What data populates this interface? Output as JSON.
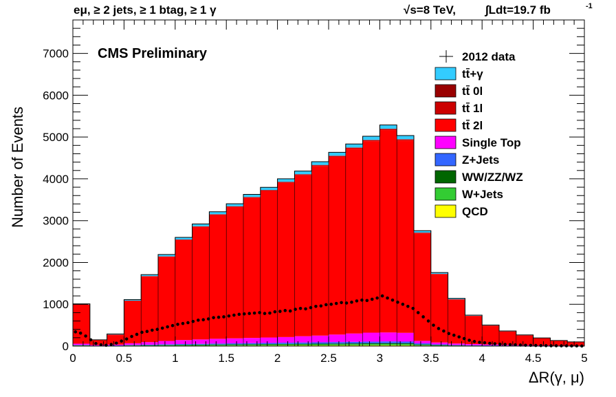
{
  "header": {
    "left": "eμ, ≥ 2 jets, ≥ 1 btag, ≥ 1 γ",
    "sqrt": "√s=8 TeV,",
    "lumi": "∫Ldt=19.7 fb",
    "lumi_exp": "-1"
  },
  "chart_data": {
    "type": "bar",
    "stacked": true,
    "title": "CMS Preliminary",
    "xlabel": "ΔR(γ, μ)",
    "ylabel": "Number of Events",
    "xlim": [
      0,
      5
    ],
    "ylim": [
      0,
      7800
    ],
    "x_ticks": [
      "0",
      "0.5",
      "1",
      "1.5",
      "2",
      "2.5",
      "3",
      "3.5",
      "4",
      "4.5",
      "5"
    ],
    "y_ticks": [
      "0",
      "1000",
      "2000",
      "3000",
      "4000",
      "5000",
      "6000",
      "7000"
    ],
    "legend_position": "top-right",
    "bin_edges": [
      0,
      0.166667,
      0.333333,
      0.5,
      0.666667,
      0.833333,
      1,
      1.166667,
      1.333333,
      1.5,
      1.666667,
      1.833333,
      2,
      2.166667,
      2.333333,
      2.5,
      2.666667,
      2.833333,
      3,
      3.166667,
      3.333333,
      3.5,
      3.666667,
      3.833333,
      4,
      4.166667,
      4.333333,
      4.5,
      4.666667,
      4.833333,
      5
    ],
    "series": [
      {
        "name": "QCD",
        "color": "#ffff00",
        "values": [
          5,
          2,
          3,
          5,
          6,
          8,
          9,
          10,
          11,
          12,
          13,
          14,
          15,
          16,
          17,
          18,
          19,
          20,
          21,
          20,
          12,
          8,
          5,
          4,
          3,
          2,
          2,
          1,
          1,
          1
        ]
      },
      {
        "name": "W+Jets",
        "color": "#33cc33",
        "values": [
          8,
          3,
          4,
          8,
          10,
          12,
          14,
          15,
          17,
          18,
          19,
          20,
          22,
          23,
          24,
          25,
          26,
          27,
          28,
          27,
          16,
          10,
          7,
          5,
          4,
          3,
          2,
          2,
          1,
          1
        ]
      },
      {
        "name": "WW/ZZ/WZ",
        "color": "#006600",
        "values": [
          5,
          2,
          3,
          5,
          6,
          8,
          9,
          10,
          11,
          12,
          13,
          14,
          15,
          16,
          17,
          18,
          19,
          20,
          21,
          20,
          12,
          8,
          5,
          4,
          3,
          2,
          2,
          1,
          1,
          1
        ]
      },
      {
        "name": "Z+Jets",
        "color": "#3366ff",
        "values": [
          10,
          4,
          6,
          10,
          12,
          15,
          17,
          19,
          21,
          23,
          25,
          27,
          29,
          31,
          33,
          35,
          37,
          39,
          41,
          40,
          25,
          15,
          10,
          8,
          6,
          5,
          4,
          3,
          2,
          2
        ]
      },
      {
        "name": "Single Top",
        "color": "#ff00ff",
        "values": [
          30,
          15,
          20,
          40,
          60,
          80,
          95,
          105,
          115,
          120,
          125,
          130,
          135,
          150,
          160,
          180,
          200,
          215,
          215,
          210,
          60,
          45,
          35,
          28,
          22,
          17,
          13,
          10,
          8,
          6
        ]
      },
      {
        "name": "tt̄ 2l",
        "color": "#ff0000",
        "values": [
          930,
          115,
          235,
          1010,
          1570,
          2010,
          2390,
          2690,
          2960,
          3140,
          3350,
          3505,
          3690,
          3850,
          4055,
          4250,
          4420,
          4580,
          4840,
          4600,
          2570,
          1630,
          1050,
          670,
          450,
          320,
          235,
          170,
          115,
          85
        ]
      },
      {
        "name": "tt̄ 1l",
        "color": "#cc0000",
        "values": [
          6,
          3,
          4,
          6,
          8,
          10,
          12,
          13,
          14,
          15,
          16,
          17,
          18,
          19,
          20,
          21,
          22,
          23,
          24,
          23,
          15,
          10,
          7,
          5,
          4,
          3,
          2,
          2,
          1,
          1
        ]
      },
      {
        "name": "tt̄ 0l",
        "color": "#990000",
        "values": [
          2,
          1,
          1,
          2,
          3,
          3,
          4,
          4,
          5,
          5,
          5,
          6,
          6,
          6,
          7,
          7,
          7,
          8,
          8,
          8,
          5,
          3,
          2,
          2,
          1,
          1,
          1,
          1,
          0,
          0
        ]
      },
      {
        "name": "tt̄+γ",
        "color": "#33ccff",
        "values": [
          14,
          5,
          14,
          24,
          35,
          44,
          50,
          54,
          58,
          60,
          62,
          65,
          70,
          74,
          77,
          80,
          84,
          87,
          90,
          88,
          45,
          30,
          20,
          15,
          11,
          8,
          6,
          5,
          4,
          3
        ]
      }
    ],
    "data": {
      "name": "2012 data",
      "x": [
        0.025,
        0.075,
        0.125,
        0.175,
        0.225,
        0.275,
        0.325,
        0.375,
        0.425,
        0.475,
        0.525,
        0.575,
        0.625,
        0.675,
        0.725,
        0.775,
        0.825,
        0.875,
        0.925,
        0.975,
        1.025,
        1.075,
        1.125,
        1.175,
        1.225,
        1.275,
        1.325,
        1.375,
        1.425,
        1.475,
        1.525,
        1.575,
        1.625,
        1.675,
        1.725,
        1.775,
        1.825,
        1.875,
        1.925,
        1.975,
        2.025,
        2.075,
        2.125,
        2.175,
        2.225,
        2.275,
        2.325,
        2.375,
        2.425,
        2.475,
        2.525,
        2.575,
        2.625,
        2.675,
        2.725,
        2.775,
        2.825,
        2.875,
        2.925,
        2.975,
        3.025,
        3.075,
        3.125,
        3.175,
        3.225,
        3.275,
        3.325,
        3.375,
        3.425,
        3.475,
        3.525,
        3.575,
        3.625,
        3.675,
        3.725,
        3.775,
        3.825,
        3.875,
        3.925,
        3.975,
        4.025,
        4.075,
        4.125,
        4.175,
        4.225,
        4.275,
        4.325,
        4.375,
        4.425,
        4.475,
        4.525,
        4.575,
        4.625,
        4.675,
        4.725,
        4.775,
        4.825,
        4.875,
        4.925,
        4.975
      ],
      "y": [
        340,
        310,
        240,
        150,
        60,
        30,
        20,
        40,
        70,
        120,
        170,
        230,
        280,
        330,
        350,
        380,
        400,
        430,
        460,
        490,
        520,
        540,
        560,
        590,
        620,
        630,
        650,
        680,
        690,
        700,
        720,
        740,
        760,
        770,
        780,
        790,
        800,
        780,
        790,
        820,
        830,
        850,
        840,
        880,
        900,
        890,
        920,
        950,
        960,
        990,
        1000,
        1020,
        1040,
        1030,
        1050,
        1080,
        1100,
        1090,
        1120,
        1150,
        1200,
        1150,
        1100,
        1050,
        1000,
        950,
        900,
        800,
        700,
        600,
        500,
        420,
        360,
        300,
        260,
        220,
        180,
        140,
        110,
        90,
        80,
        65,
        55,
        45,
        40,
        35,
        30,
        25,
        20,
        18,
        15,
        12,
        10,
        8,
        8,
        7,
        6,
        5,
        4,
        3
      ]
    }
  }
}
